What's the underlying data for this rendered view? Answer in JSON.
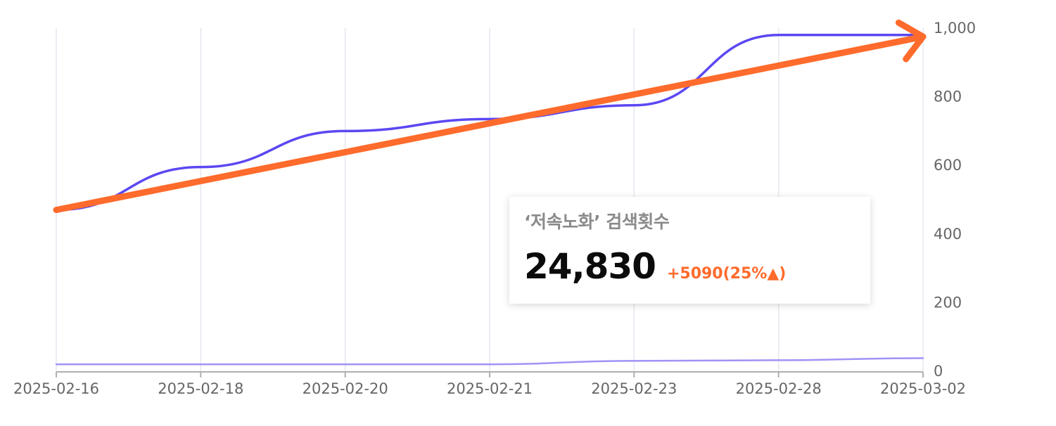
{
  "chart_data": {
    "type": "line",
    "categories": [
      "2025-02-16",
      "2025-02-18",
      "2025-02-20",
      "2025-02-21",
      "2025-02-23",
      "2025-02-28",
      "2025-03-02"
    ],
    "y_axis": {
      "position": "right",
      "range": [
        0,
        1000
      ],
      "ticks": [
        "0",
        "200",
        "400",
        "600",
        "800",
        "1,000"
      ]
    },
    "grid": {
      "vertical": true,
      "horizontal": false
    },
    "series": [
      {
        "values": [
          470,
          595,
          700,
          735,
          775,
          980,
          980
        ],
        "color": "#5b48f2"
      },
      {
        "values": [
          20,
          20,
          20,
          20,
          30,
          32,
          38
        ],
        "color": "#9f93f6"
      }
    ],
    "trend_arrow": {
      "from": [
        0,
        470
      ],
      "to": [
        6,
        975
      ],
      "color": "#ff6b2c"
    },
    "tooltip": {
      "title": "‘저속노화’ 검색횟수",
      "value": "24,830",
      "change": "+5090(25%▲)",
      "value_color": "#0b0b0b",
      "change_color": "#ff6b2c"
    }
  }
}
